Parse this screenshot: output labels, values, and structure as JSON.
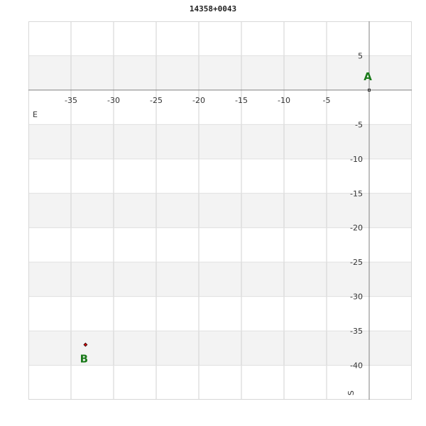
{
  "chart_data": {
    "type": "scatter",
    "title": "14358+0043",
    "xlabel": "E",
    "ylabel": "S",
    "xlim": [
      -40,
      5
    ],
    "ylim": [
      -45,
      10
    ],
    "x_ticks": [
      -35,
      -30,
      -25,
      -20,
      -15,
      -10,
      -5
    ],
    "y_ticks": [
      5,
      -5,
      -10,
      -15,
      -20,
      -25,
      -30,
      -35,
      -40
    ],
    "grid": true,
    "shaded_bands": [
      [
        0,
        5
      ],
      [
        -10,
        -5
      ],
      [
        -20,
        -15
      ],
      [
        -30,
        -25
      ],
      [
        -40,
        -35
      ]
    ],
    "points": [
      {
        "label": "A",
        "x": 0,
        "y": 0
      },
      {
        "label": "B",
        "x": -33.3,
        "y": -37
      }
    ],
    "colors": {
      "label": "#1a7a1a",
      "point": "#cc0000",
      "band": "#f3f3f3",
      "grid": "#d0d0d0",
      "axis": "#808080"
    }
  }
}
